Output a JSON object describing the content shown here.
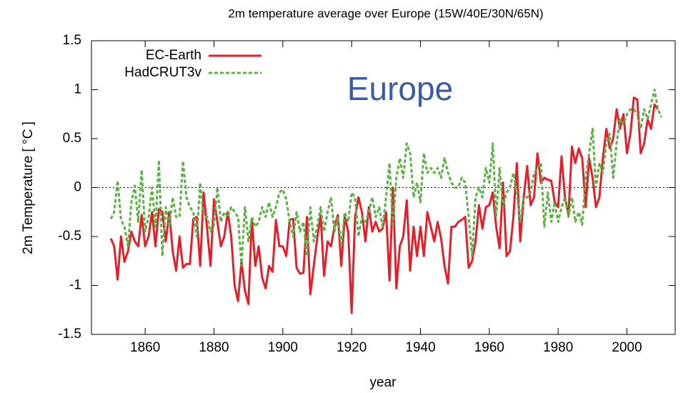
{
  "chart_data": {
    "type": "line",
    "title": "2m temperature average over Europe (15W/40E/30N/65N)",
    "xlabel": "year",
    "ylabel": "2m Temperature [ °C ]",
    "annotation": "Europe",
    "x": [
      1850,
      1851,
      1852,
      1853,
      1854,
      1855,
      1856,
      1857,
      1858,
      1859,
      1860,
      1861,
      1862,
      1863,
      1864,
      1865,
      1866,
      1867,
      1868,
      1869,
      1870,
      1871,
      1872,
      1873,
      1874,
      1875,
      1876,
      1877,
      1878,
      1879,
      1880,
      1881,
      1882,
      1883,
      1884,
      1885,
      1886,
      1887,
      1888,
      1889,
      1890,
      1891,
      1892,
      1893,
      1894,
      1895,
      1896,
      1897,
      1898,
      1899,
      1900,
      1901,
      1902,
      1903,
      1904,
      1905,
      1906,
      1907,
      1908,
      1909,
      1910,
      1911,
      1912,
      1913,
      1914,
      1915,
      1916,
      1917,
      1918,
      1919,
      1920,
      1921,
      1922,
      1923,
      1924,
      1925,
      1926,
      1927,
      1928,
      1929,
      1930,
      1931,
      1932,
      1933,
      1934,
      1935,
      1936,
      1937,
      1938,
      1939,
      1940,
      1941,
      1942,
      1943,
      1944,
      1945,
      1946,
      1947,
      1948,
      1949,
      1950,
      1951,
      1952,
      1953,
      1954,
      1955,
      1956,
      1957,
      1958,
      1959,
      1960,
      1961,
      1962,
      1963,
      1964,
      1965,
      1966,
      1967,
      1968,
      1969,
      1970,
      1971,
      1972,
      1973,
      1974,
      1975,
      1976,
      1977,
      1978,
      1979,
      1980,
      1981,
      1982,
      1983,
      1984,
      1985,
      1986,
      1987,
      1988,
      1989,
      1990,
      1991,
      1992,
      1993,
      1994,
      1995,
      1996,
      1997,
      1998,
      1999,
      2000,
      2001,
      2002,
      2003,
      2004,
      2005,
      2006,
      2007,
      2008,
      2009,
      2010
    ],
    "series": [
      {
        "name": "EC-Earth",
        "color": "#e3202a",
        "linestyle": "solid",
        "values": [
          -0.52,
          -0.6,
          -0.94,
          -0.5,
          -0.76,
          -0.65,
          -0.45,
          -0.55,
          -0.6,
          -0.28,
          -0.6,
          -0.5,
          -0.25,
          -0.6,
          -0.22,
          -0.25,
          -0.55,
          -0.25,
          -0.65,
          -0.85,
          -0.5,
          -0.82,
          -0.78,
          -0.78,
          -0.32,
          -0.3,
          -0.8,
          -0.05,
          -0.42,
          -0.8,
          -0.12,
          -0.35,
          -0.6,
          -0.5,
          -0.25,
          -0.5,
          -1.0,
          -1.16,
          -0.75,
          -1.05,
          -1.19,
          -0.32,
          -0.8,
          -0.6,
          -0.92,
          -1.03,
          -0.8,
          -0.86,
          -0.33,
          -0.6,
          -0.6,
          -0.7,
          -0.33,
          -0.32,
          -0.82,
          -0.88,
          -0.87,
          -0.3,
          -1.09,
          -0.8,
          -0.52,
          -0.28,
          -0.9,
          -0.55,
          -0.6,
          -0.4,
          -0.28,
          -0.8,
          -0.3,
          -0.45,
          -1.28,
          -0.3,
          -0.1,
          -0.25,
          -0.55,
          -0.2,
          -0.45,
          -0.35,
          -0.45,
          -0.42,
          -0.25,
          -0.95,
          0.0,
          -1.03,
          -0.6,
          -0.5,
          -0.13,
          -0.85,
          -0.4,
          -0.7,
          -0.4,
          -0.7,
          -0.25,
          -0.4,
          -0.55,
          -0.35,
          -0.52,
          -0.8,
          -0.98,
          -0.4,
          -0.4,
          -0.35,
          -0.33,
          -0.3,
          -0.82,
          -0.75,
          -0.55,
          -0.18,
          -0.42,
          -0.2,
          -0.18,
          -0.05,
          -0.4,
          -0.62,
          0.05,
          -0.7,
          -0.65,
          -0.3,
          0.25,
          -0.55,
          -0.1,
          0.22,
          -0.18,
          -0.1,
          0.35,
          0.05,
          0.1,
          0.08,
          0.07,
          -0.15,
          -0.2,
          0.32,
          -0.1,
          -0.28,
          0.42,
          0.25,
          0.4,
          0.3,
          -0.2,
          0.3,
          0.1,
          -0.2,
          -0.1,
          0.3,
          0.6,
          0.4,
          0.5,
          0.8,
          0.6,
          0.75,
          0.35,
          0.55,
          0.92,
          0.9,
          0.35,
          0.45,
          0.7,
          0.6,
          0.85,
          0.8,
          null
        ]
      },
      {
        "name": "HadCRUT3v",
        "color": "#5cb246",
        "linestyle": "dashed",
        "values": [
          -0.32,
          -0.25,
          0.07,
          -0.33,
          -0.4,
          -0.6,
          -0.15,
          0.02,
          -0.35,
          0.18,
          -0.45,
          -0.3,
          0.0,
          -0.4,
          0.28,
          -0.7,
          -0.2,
          -0.4,
          -0.1,
          -0.3,
          -0.3,
          0.27,
          -0.1,
          -0.2,
          -0.25,
          -0.5,
          0.05,
          -0.3,
          -0.3,
          -0.45,
          -0.38,
          0.0,
          -0.35,
          -0.25,
          -0.3,
          -0.2,
          -0.25,
          -0.3,
          -0.8,
          -0.2,
          -0.55,
          -0.3,
          -0.4,
          -0.35,
          -0.2,
          -0.3,
          -0.15,
          -0.3,
          -0.2,
          -0.05,
          -0.02,
          -0.12,
          -0.35,
          -0.5,
          -0.25,
          -0.45,
          -0.35,
          -0.7,
          -0.2,
          -0.55,
          -0.4,
          -0.2,
          -0.45,
          -0.25,
          -0.1,
          -0.45,
          -0.3,
          -0.6,
          -0.25,
          -0.35,
          -0.05,
          -0.1,
          -0.5,
          -0.3,
          -0.35,
          -0.25,
          -0.1,
          -0.3,
          -0.2,
          -0.4,
          -0.1,
          0.25,
          -0.4,
          0.1,
          0.3,
          0.1,
          0.45,
          0.35,
          -0.1,
          0.05,
          -0.15,
          0.35,
          0.15,
          0.2,
          0.15,
          0.2,
          0.1,
          0.3,
          0.15,
          0.05,
          0.0,
          0.0,
          0.1,
          0.05,
          -0.3,
          -0.7,
          -0.1,
          0.0,
          -0.1,
          0.2,
          0.05,
          0.45,
          -0.3,
          0.2,
          -0.2,
          -0.05,
          0.0,
          0.15,
          -0.05,
          -0.35,
          -0.1,
          -0.1,
          -0.05,
          0.15,
          0.2,
          0.25,
          -0.4,
          -0.05,
          -0.35,
          -0.15,
          -0.35,
          -0.2,
          -0.1,
          -0.3,
          -0.1,
          -0.35,
          -0.25,
          -0.38,
          0.1,
          0.35,
          0.6,
          0.0,
          0.25,
          0.15,
          0.45,
          0.55,
          0.1,
          0.45,
          0.7,
          0.65,
          0.75,
          0.8,
          0.8,
          0.75,
          0.6,
          0.8,
          0.7,
          0.85,
          1.0,
          0.8,
          0.72
        ]
      }
    ],
    "xlim": [
      1844.4,
      2014
    ],
    "ylim": [
      -1.5,
      1.5
    ],
    "xticks": [
      1860,
      1880,
      1900,
      1920,
      1940,
      1960,
      1980,
      2000
    ],
    "yticks": [
      -1.5,
      -1,
      -0.5,
      0,
      0.5,
      1,
      1.5
    ],
    "zeroline": true,
    "legend": "upper left"
  }
}
